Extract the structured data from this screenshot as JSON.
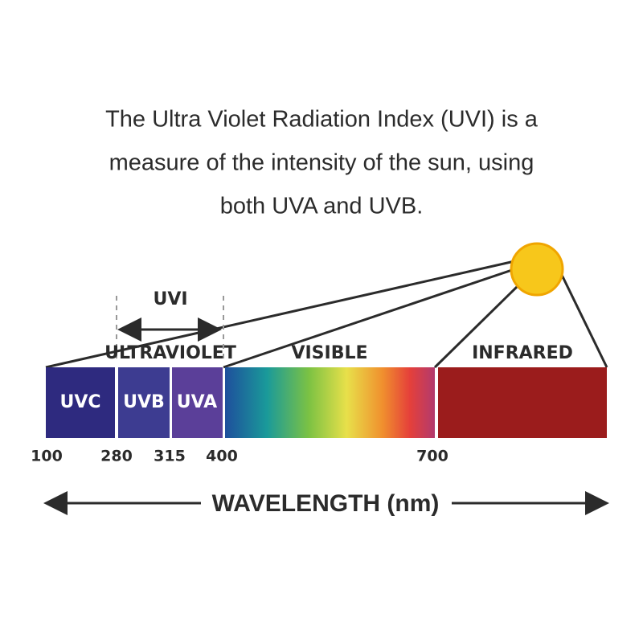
{
  "heading": {
    "lines": [
      "The Ultra Violet Radiation Index (UVI) is a",
      "measure of the intensity of the sun, using",
      "both UVA and UVB."
    ]
  },
  "diagram": {
    "uvi_label": "UVI",
    "regions": {
      "ultraviolet": "ULTRAVIOLET",
      "visible": "VISIBLE",
      "infrared": "INFRARED"
    },
    "bands": [
      "UVC",
      "UVB",
      "UVA"
    ],
    "ticks": [
      "100",
      "280",
      "315",
      "400",
      "700"
    ],
    "axis_label": "WAVELENGTH (nm)"
  }
}
